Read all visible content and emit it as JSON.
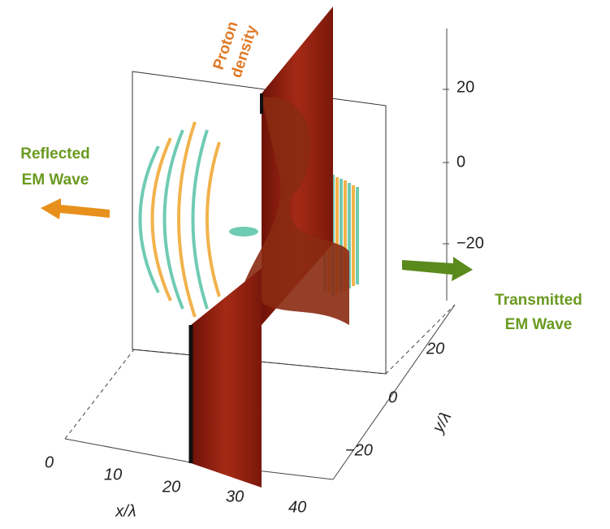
{
  "annotations": {
    "proton_density": [
      "Proton",
      "density"
    ],
    "reflected": [
      "Reflected",
      "EM Wave"
    ],
    "transmitted": [
      "Transmitted",
      "EM Wave"
    ]
  },
  "axes": {
    "x": {
      "label": "x/λ",
      "ticks": [
        "0",
        "10",
        "20",
        "30",
        "40"
      ]
    },
    "y": {
      "label": "y/λ",
      "ticks": [
        "20",
        "0",
        "−20"
      ]
    },
    "z": {
      "ticks": [
        "20",
        "0",
        "−20"
      ]
    }
  }
}
